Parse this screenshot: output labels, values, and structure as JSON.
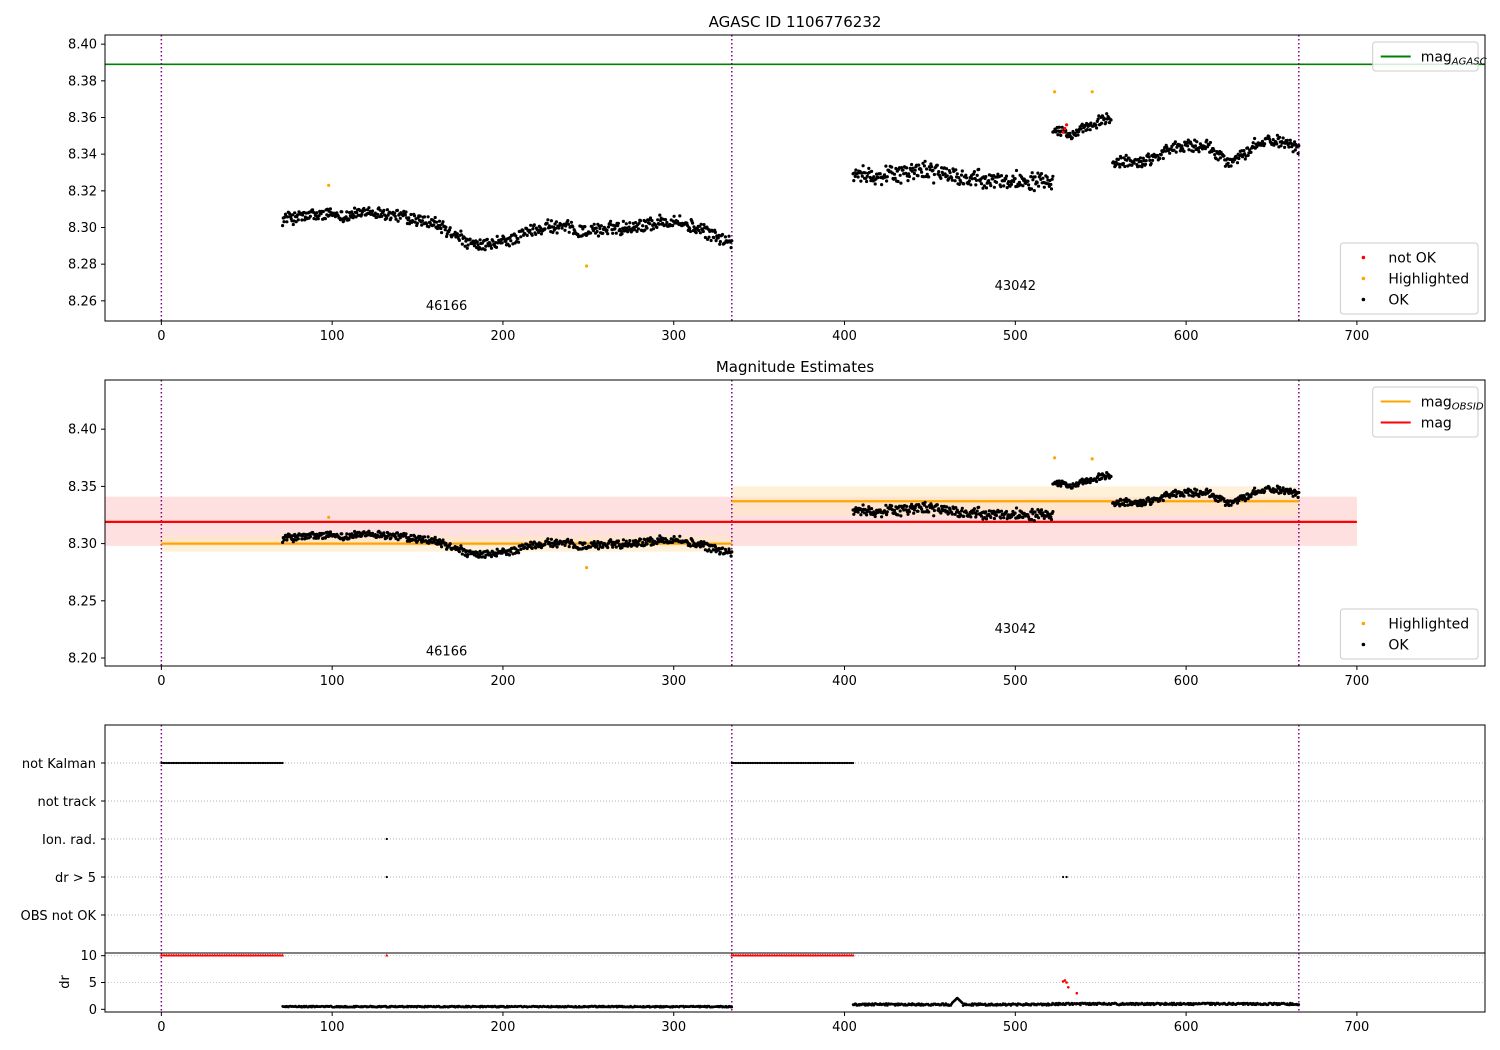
{
  "colors": {
    "ok": "#000000",
    "not_ok": "#ff0000",
    "highlighted": "#ffa500",
    "agasc": "#008000",
    "obsid": "#ffa500",
    "mag": "#ff0000",
    "vline": "#800080",
    "band_mag": "#ffcccc",
    "band_obsid": "#ffe8c0"
  },
  "chart_data": [
    {
      "type": "scatter",
      "title": "AGASC ID 1106776232",
      "xlim": [
        -33,
        775
      ],
      "ylim": [
        8.249,
        8.405
      ],
      "x_ticks": [
        0,
        100,
        200,
        300,
        400,
        500,
        600,
        700
      ],
      "y_ticks": [
        8.26,
        8.28,
        8.3,
        8.32,
        8.34,
        8.36,
        8.38,
        8.4
      ],
      "y_tick_labels": [
        "8.26",
        "8.28",
        "8.30",
        "8.32",
        "8.34",
        "8.36",
        "8.38",
        "8.40"
      ],
      "vlines": [
        0,
        334,
        666
      ],
      "hlines": [
        {
          "name": "mag_AGASC",
          "y": 8.389,
          "color": "agasc"
        }
      ],
      "annotations": [
        {
          "text": "46166",
          "x": 167,
          "y": 8.255
        },
        {
          "text": "43042",
          "x": 500,
          "y": 8.266
        }
      ],
      "legends": [
        {
          "loc": "upper right",
          "entries": [
            {
              "label": "mag",
              "sub": "AGASC",
              "kind": "line",
              "color": "agasc"
            }
          ]
        },
        {
          "loc": "lower right",
          "entries": [
            {
              "label": "not OK",
              "kind": "dot",
              "color": "not_ok"
            },
            {
              "label": "Highlighted",
              "kind": "dot",
              "color": "highlighted"
            },
            {
              "label": "OK",
              "kind": "dot",
              "color": "ok"
            }
          ]
        }
      ],
      "series": [
        {
          "name": "OK",
          "segments": [
            {
              "x0": 71,
              "x1": 334,
              "knots": [
                [
                  71,
                  8.305
                ],
                [
                  100,
                  8.307
                ],
                [
                  130,
                  8.308
                ],
                [
                  160,
                  8.302
                ],
                [
                  185,
                  8.289
                ],
                [
                  200,
                  8.292
                ],
                [
                  225,
                  8.301
                ],
                [
                  250,
                  8.298
                ],
                [
                  300,
                  8.304
                ],
                [
                  320,
                  8.297
                ],
                [
                  334,
                  8.292
                ]
              ],
              "noise": 0.006
            },
            {
              "x0": 405,
              "x1": 522,
              "knots": [
                [
                  405,
                  8.328
                ],
                [
                  420,
                  8.329
                ],
                [
                  450,
                  8.331
                ],
                [
                  480,
                  8.325
                ],
                [
                  500,
                  8.326
                ],
                [
                  522,
                  8.327
                ]
              ],
              "noise": 0.008
            },
            {
              "x0": 522,
              "x1": 556,
              "knots": [
                [
                  522,
                  8.354
                ],
                [
                  535,
                  8.35
                ],
                [
                  545,
                  8.356
                ],
                [
                  556,
                  8.36
                ]
              ],
              "noise": 0.005
            },
            {
              "x0": 557,
              "x1": 666,
              "knots": [
                [
                  557,
                  8.335
                ],
                [
                  575,
                  8.336
                ],
                [
                  590,
                  8.343
                ],
                [
                  610,
                  8.345
                ],
                [
                  625,
                  8.336
                ],
                [
                  650,
                  8.348
                ],
                [
                  666,
                  8.345
                ]
              ],
              "noise": 0.006
            }
          ]
        },
        {
          "name": "not OK",
          "points": [
            [
              528,
              8.352
            ],
            [
              529,
              8.354
            ],
            [
              530,
              8.356
            ]
          ]
        },
        {
          "name": "Highlighted",
          "points": [
            [
              98,
              8.323
            ],
            [
              249,
              8.279
            ],
            [
              523,
              8.374
            ],
            [
              545,
              8.374
            ]
          ]
        }
      ]
    },
    {
      "type": "scatter",
      "title": "Magnitude Estimates",
      "xlim": [
        -33,
        775
      ],
      "ylim": [
        8.193,
        8.443
      ],
      "x_ticks": [
        0,
        100,
        200,
        300,
        400,
        500,
        600,
        700
      ],
      "y_ticks": [
        8.2,
        8.25,
        8.3,
        8.35,
        8.4
      ],
      "y_tick_labels": [
        "8.20",
        "8.25",
        "8.30",
        "8.35",
        "8.40"
      ],
      "vlines": [
        0,
        334,
        666
      ],
      "bands": [
        {
          "x0": -33,
          "x1": 700,
          "y0": 8.298,
          "y1": 8.341,
          "color": "band_mag"
        },
        {
          "x0": 0,
          "x1": 334,
          "y0": 8.293,
          "y1": 8.307,
          "color": "band_obsid"
        },
        {
          "x0": 334,
          "x1": 666,
          "y0": 8.325,
          "y1": 8.35,
          "color": "band_obsid"
        }
      ],
      "lines": [
        {
          "name": "mag_OBSID",
          "color": "obsid",
          "segments": [
            [
              0,
              334,
              8.3
            ],
            [
              334,
              666,
              8.337
            ]
          ]
        },
        {
          "name": "mag",
          "color": "mag",
          "segments": [
            [
              -33,
              700,
              8.319
            ]
          ]
        }
      ],
      "annotations": [
        {
          "text": "46166",
          "x": 167,
          "y": 8.202
        },
        {
          "text": "43042",
          "x": 500,
          "y": 8.222
        }
      ],
      "legends": [
        {
          "loc": "upper right",
          "entries": [
            {
              "label": "mag",
              "sub": "OBSID",
              "kind": "line",
              "color": "obsid"
            },
            {
              "label": "mag",
              "kind": "line",
              "color": "mag"
            }
          ]
        },
        {
          "loc": "lower right",
          "entries": [
            {
              "label": "Highlighted",
              "kind": "dot",
              "color": "highlighted"
            },
            {
              "label": "OK",
              "kind": "dot",
              "color": "ok"
            }
          ]
        }
      ],
      "series": [
        {
          "name": "OK",
          "reuse_from_panel": 0
        },
        {
          "name": "Highlighted",
          "points": [
            [
              98,
              8.323
            ],
            [
              249,
              8.279
            ],
            [
              523,
              8.375
            ],
            [
              545,
              8.374
            ]
          ]
        }
      ]
    },
    {
      "type": "scatter",
      "title": "",
      "xlim": [
        -33,
        775
      ],
      "categories": [
        "not Kalman",
        "not track",
        "Ion. rad.",
        "dr > 5",
        "OBS not OK"
      ],
      "vlines": [
        0,
        334,
        666
      ],
      "flags": [
        {
          "category": "not Kalman",
          "ranges": [
            [
              0,
              71
            ],
            [
              334,
              405
            ]
          ]
        },
        {
          "category": "Ion. rad.",
          "points": [
            132
          ]
        },
        {
          "category": "dr > 5",
          "points": [
            132,
            528,
            530
          ]
        }
      ]
    },
    {
      "type": "scatter",
      "title": "",
      "ylabel": "dr",
      "xlim": [
        -33,
        775
      ],
      "ylim": [
        -0.5,
        10.5
      ],
      "x_ticks": [
        0,
        100,
        200,
        300,
        400,
        500,
        600,
        700
      ],
      "y_ticks": [
        0,
        5,
        10
      ],
      "y_tick_labels": [
        "0",
        "5",
        "10"
      ],
      "vlines": [
        0,
        334,
        666
      ],
      "clipped": {
        "y": 10,
        "ranges": [
          [
            0,
            71
          ],
          [
            334,
            405
          ]
        ],
        "points": [
          132
        ],
        "color": "not_ok"
      },
      "series": [
        {
          "name": "dr OK",
          "segments": [
            {
              "x0": 71,
              "x1": 334,
              "level": 0.5,
              "noise": 0.25
            },
            {
              "x0": 405,
              "x1": 520,
              "level": 0.9,
              "noise": 0.4,
              "bump": [
                466,
                2.1
              ]
            },
            {
              "x0": 521,
              "x1": 666,
              "level": 1.0,
              "noise": 0.4
            }
          ]
        },
        {
          "name": "dr not OK",
          "points": [
            [
              528,
              5.2
            ],
            [
              529,
              5.4
            ],
            [
              530,
              5.0
            ],
            [
              531,
              4.1
            ],
            [
              536,
              3.0
            ]
          ]
        }
      ]
    }
  ]
}
